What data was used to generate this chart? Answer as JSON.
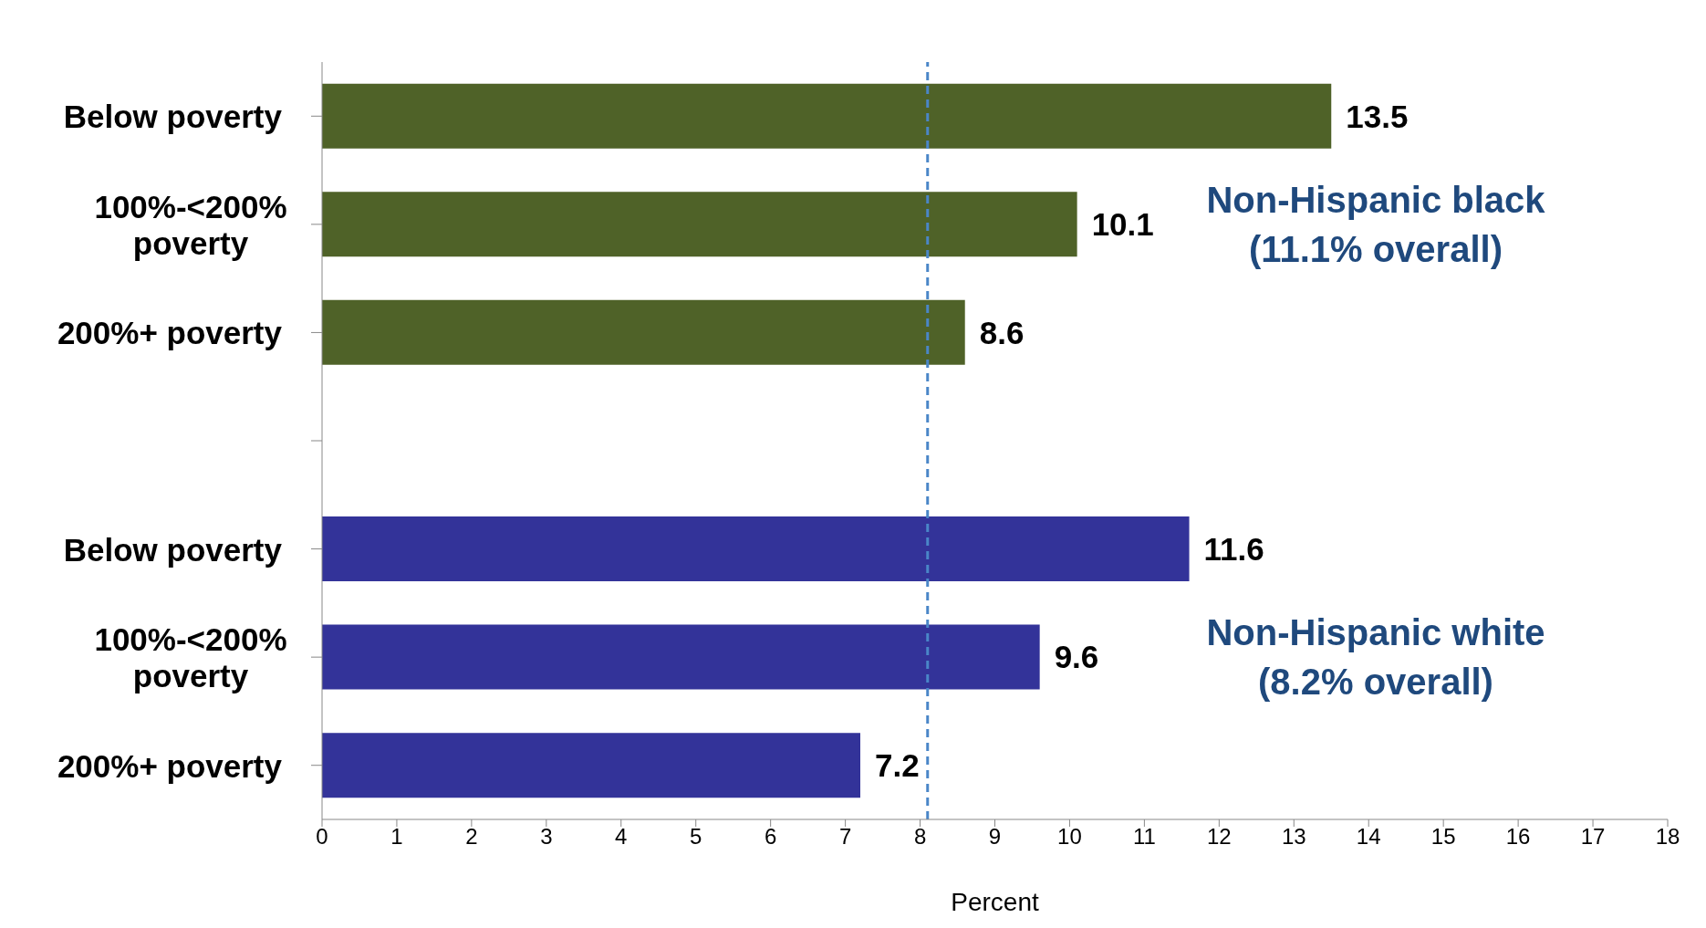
{
  "chart_data": {
    "type": "bar",
    "orientation": "horizontal",
    "xlabel": "Percent",
    "categories": [
      "Below poverty",
      "100%-<200% poverty",
      "200%+ poverty",
      null,
      "Below poverty",
      "100%-<200% poverty",
      "200%+ poverty"
    ],
    "values": [
      13.5,
      10.1,
      8.6,
      null,
      11.6,
      9.6,
      7.2
    ],
    "colors": [
      "#4f6228",
      "#4f6228",
      "#4f6228",
      "#ffffff",
      "#333399",
      "#333399",
      "#333399"
    ],
    "xlim": [
      0,
      18
    ],
    "xticks": [
      0,
      1,
      2,
      3,
      4,
      5,
      6,
      7,
      8,
      9,
      10,
      11,
      12,
      13,
      14,
      15,
      16,
      17,
      18
    ],
    "data_labels": true,
    "ref_lines": [
      {
        "axis": "x",
        "value": 8.1,
        "color": "#4a86c8",
        "line_style": "dashed"
      }
    ],
    "annotations": [
      "Non-Hispanic black\n(11.1% overall)",
      "Non-Hispanic white\n(8.2% overall)"
    ]
  }
}
